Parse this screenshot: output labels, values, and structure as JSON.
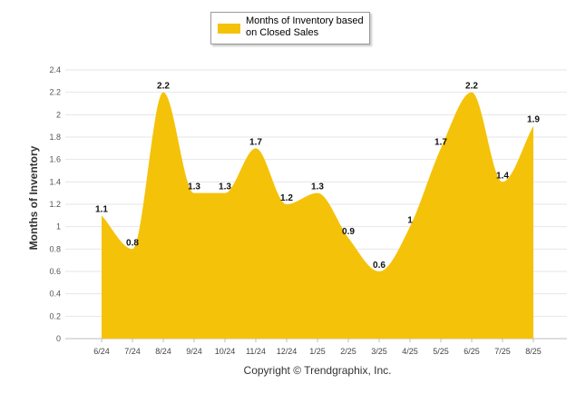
{
  "footer": "Copyright © Trendgraphix, Inc.",
  "colors": {
    "area": "#F5C20A",
    "grid": "#e6e6e6",
    "axis": "#bdbdbd"
  },
  "chart_data": {
    "type": "area",
    "title": "",
    "xlabel": "",
    "ylabel": "Months of Inventory",
    "ylim": [
      0,
      2.4
    ],
    "yticks": [
      "0",
      "0.2",
      "0.4",
      "0.6",
      "0.8",
      "1",
      "1.2",
      "1.4",
      "1.6",
      "1.8",
      "2",
      "2.2",
      "2.4"
    ],
    "categories": [
      "6/24",
      "7/24",
      "8/24",
      "9/24",
      "10/24",
      "11/24",
      "12/24",
      "1/25",
      "2/25",
      "3/25",
      "4/25",
      "5/25",
      "6/25",
      "7/25",
      "8/25"
    ],
    "series": [
      {
        "name": "Months of Inventory based on Closed Sales",
        "values": [
          1.1,
          0.8,
          2.2,
          1.3,
          1.3,
          1.7,
          1.2,
          1.3,
          0.9,
          0.6,
          1,
          1.7,
          2.2,
          1.4,
          1.9
        ],
        "labels": [
          "1.1",
          "0.8",
          "2.2",
          "1.3",
          "1.3",
          "1.7",
          "1.2",
          "1.3",
          "0.9",
          "0.6",
          "1",
          "1.7",
          "2.2",
          "1.4",
          "1.9"
        ]
      }
    ],
    "legend": "top-center",
    "grid": true
  }
}
